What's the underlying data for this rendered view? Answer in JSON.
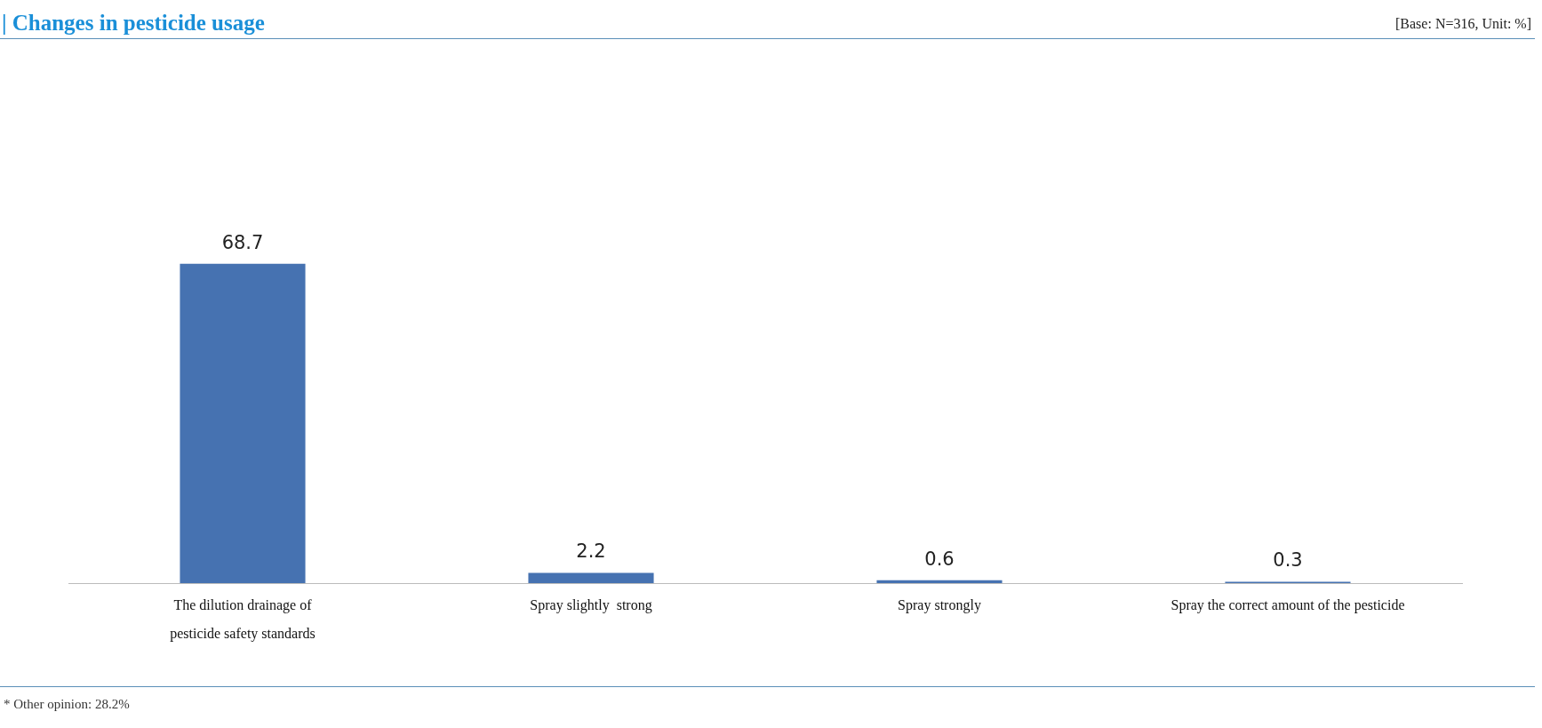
{
  "chart_data": {
    "type": "bar",
    "title": "| Changes in pesticide usage",
    "subtitle": "[Base: N=316, Unit: %]",
    "categories": [
      "The dilution drainage of\npesticide safety standards",
      "Spray slightly  strong",
      "Spray strongly",
      "Spray the correct amount of the pesticide"
    ],
    "values": [
      68.7,
      2.2,
      0.6,
      0.3
    ],
    "color": "#4672b1",
    "data_labels": true,
    "legend": false,
    "annotations": [
      "* Other opinion: 28.2%"
    ]
  }
}
